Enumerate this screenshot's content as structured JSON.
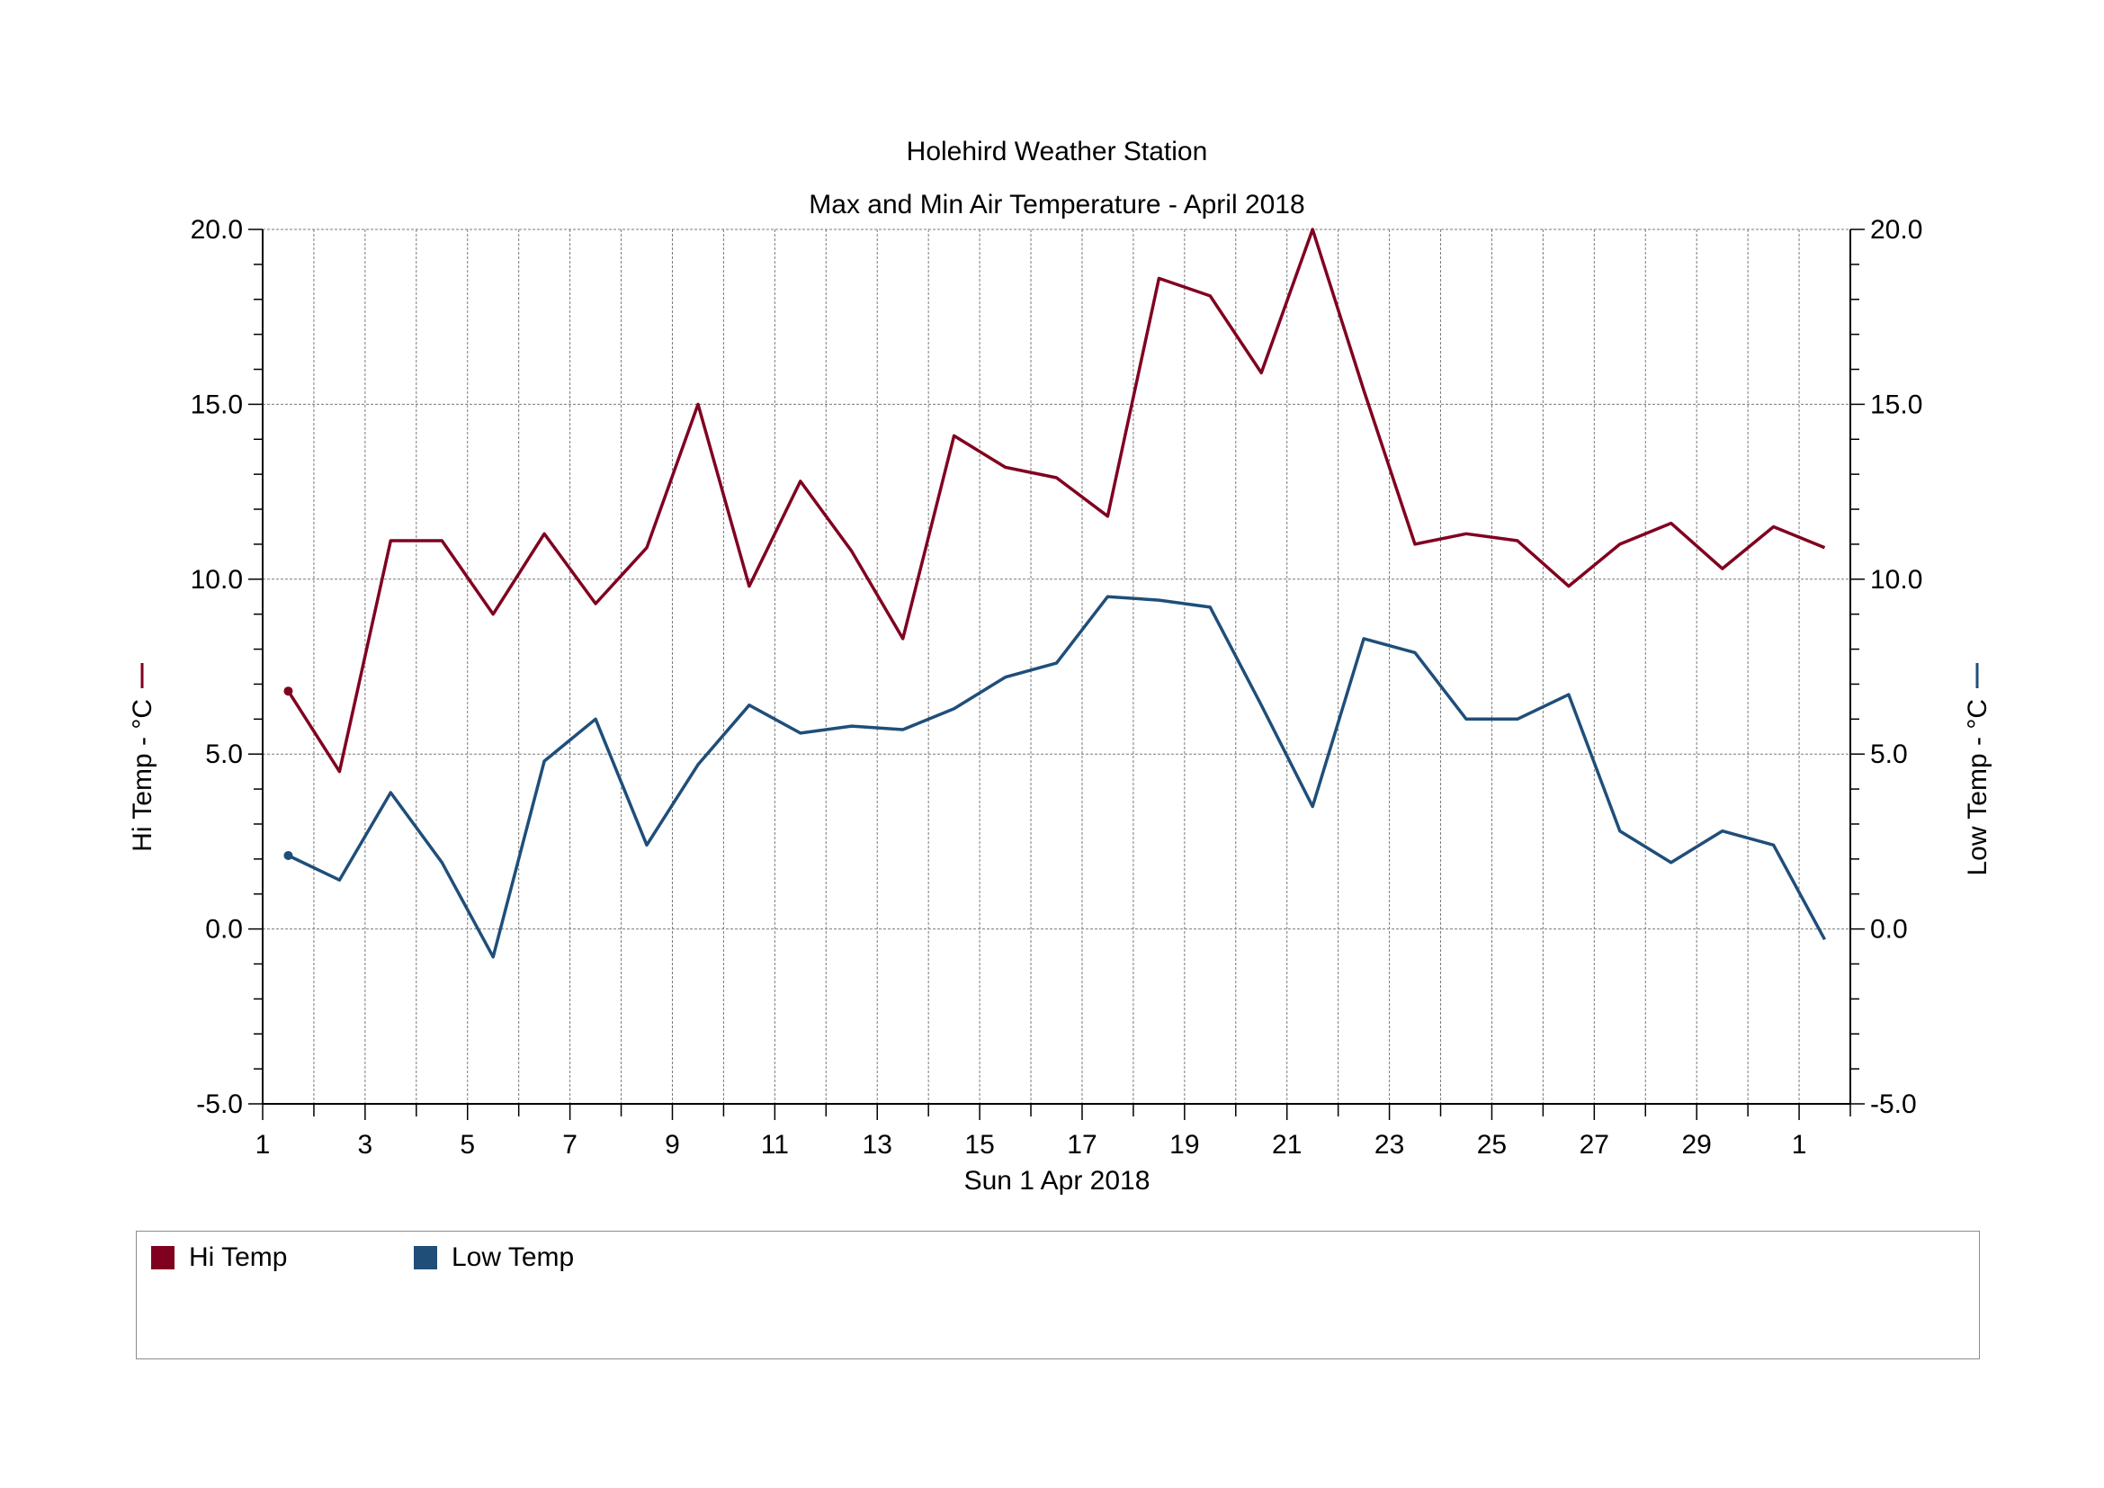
{
  "chart_data": {
    "type": "line",
    "title": "Holehird Weather Station",
    "subtitle": "Max and Min Air Temperature - April 2018",
    "xlabel": "Sun 1 Apr 2018",
    "ylabel_left": "Hi Temp - °C",
    "ylabel_right": "Low Temp - °C",
    "ylim": [
      -5,
      20
    ],
    "yticks": [
      "20.0",
      "15.0",
      "10.0",
      "5.0",
      "0.0",
      "-5.0"
    ],
    "xtick_labels": [
      "1",
      "3",
      "5",
      "7",
      "9",
      "11",
      "13",
      "15",
      "17",
      "19",
      "21",
      "23",
      "25",
      "27",
      "29",
      "1"
    ],
    "grid": true,
    "legend_position": "bottom",
    "x": [
      "1 Apr",
      "2 Apr",
      "3 Apr",
      "4 Apr",
      "5 Apr",
      "6 Apr",
      "7 Apr",
      "8 Apr",
      "9 Apr",
      "10 Apr",
      "11 Apr",
      "12 Apr",
      "13 Apr",
      "14 Apr",
      "15 Apr",
      "16 Apr",
      "17 Apr",
      "18 Apr",
      "19 Apr",
      "20 Apr",
      "21 Apr",
      "22 Apr",
      "23 Apr",
      "24 Apr",
      "25 Apr",
      "26 Apr",
      "27 Apr",
      "28 Apr",
      "29 Apr",
      "30 Apr",
      "1 May"
    ],
    "series": [
      {
        "name": "Hi Temp",
        "color": "#800020",
        "values": [
          6.8,
          4.5,
          11.1,
          11.1,
          9.0,
          11.3,
          9.3,
          10.9,
          15.0,
          9.8,
          12.8,
          10.8,
          8.3,
          14.1,
          13.2,
          12.9,
          11.8,
          18.6,
          18.1,
          15.9,
          20.0,
          15.4,
          11.0,
          11.3,
          11.1,
          9.8,
          11.0,
          11.6,
          10.3,
          11.5,
          10.9
        ]
      },
      {
        "name": "Low Temp",
        "color": "#1f4e79",
        "values": [
          2.1,
          1.4,
          3.9,
          1.9,
          -0.8,
          4.8,
          6.0,
          2.4,
          4.7,
          6.4,
          5.6,
          5.8,
          5.7,
          6.3,
          7.2,
          7.6,
          9.5,
          9.4,
          9.2,
          6.4,
          3.5,
          8.3,
          7.9,
          6.0,
          6.0,
          6.7,
          2.8,
          1.9,
          2.8,
          2.4,
          -0.3
        ]
      }
    ]
  }
}
